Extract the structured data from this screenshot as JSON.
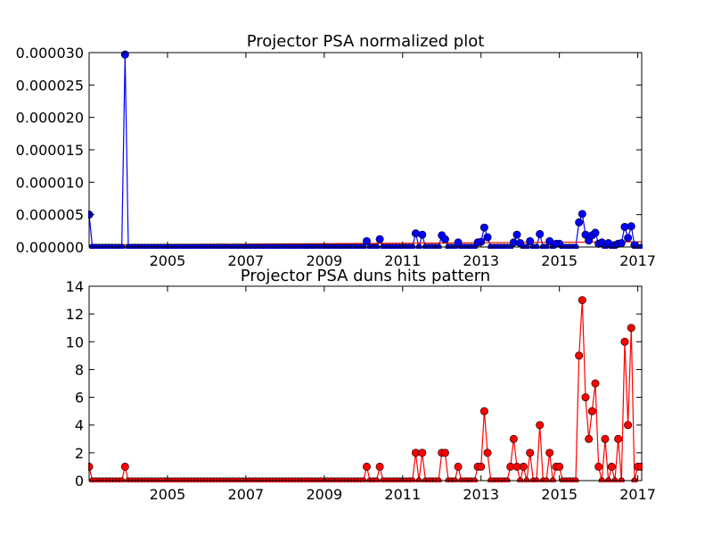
{
  "chart_data": [
    {
      "type": "line",
      "title": "Projector PSA normalized plot",
      "xlabel": "",
      "ylabel": "",
      "xlim": [
        2003.0,
        2017.1
      ],
      "ylim": [
        0,
        3e-05
      ],
      "xticks": [
        2005,
        2007,
        2009,
        2011,
        2013,
        2015,
        2017
      ],
      "yticks": [
        "0.000000",
        "0.000005",
        "0.000010",
        "0.000015",
        "0.000020",
        "0.000025",
        "0.000030"
      ],
      "ytick_values": [
        0,
        5e-06,
        1e-05,
        1.5e-05,
        2e-05,
        2.5e-05,
        3e-05
      ],
      "grid": false,
      "series": [
        {
          "color": "#0000ff",
          "marker": "circle",
          "x": [
            2003.0,
            2003.9,
            2010.08,
            2010.42,
            2011.33,
            2011.5,
            2012.0,
            2012.08,
            2012.42,
            2012.92,
            2013.0,
            2013.08,
            2013.17,
            2013.83,
            2013.92,
            2014.0,
            2014.25,
            2014.5,
            2014.75,
            2014.92,
            2015.0,
            2015.5,
            2015.58,
            2015.67,
            2015.75,
            2015.83,
            2015.92,
            2016.0,
            2016.08,
            2016.25,
            2016.42,
            2016.5,
            2016.58,
            2016.67,
            2016.75,
            2016.83,
            2016.92
          ],
          "y": [
            5e-06,
            2.97e-05,
            9e-07,
            1.2e-06,
            2.1e-06,
            1.9e-06,
            1.8e-06,
            1.2e-06,
            7e-07,
            7e-07,
            8e-07,
            3e-06,
            1.5e-06,
            7e-07,
            1.9e-06,
            6e-07,
            9e-07,
            2e-06,
            9e-07,
            5e-07,
            5e-07,
            3.8e-06,
            5.1e-06,
            1.9e-06,
            1e-06,
            1.8e-06,
            2.2e-06,
            5e-07,
            7e-07,
            6e-07,
            3e-07,
            5e-07,
            6e-07,
            3.1e-06,
            1.4e-06,
            3.2e-06,
            3e-07
          ],
          "trend": {
            "color": "#ff0000",
            "y_start": 3e-07,
            "y_end": 8e-07
          }
        }
      ]
    },
    {
      "type": "line",
      "title": "Projector PSA duns hits pattern",
      "xlabel": "",
      "ylabel": "",
      "xlim": [
        2003.0,
        2017.1
      ],
      "ylim": [
        0,
        14
      ],
      "xticks": [
        2005,
        2007,
        2009,
        2011,
        2013,
        2015,
        2017
      ],
      "yticks": [
        "0",
        "2",
        "4",
        "6",
        "8",
        "10",
        "12",
        "14"
      ],
      "ytick_values": [
        0,
        2,
        4,
        6,
        8,
        10,
        12,
        14
      ],
      "grid": false,
      "series": [
        {
          "color": "#ff0000",
          "marker": "circle",
          "x": [
            2003.0,
            2003.92,
            2010.08,
            2010.42,
            2011.33,
            2011.5,
            2012.0,
            2012.08,
            2012.42,
            2012.92,
            2013.0,
            2013.08,
            2013.17,
            2013.75,
            2013.83,
            2013.92,
            2014.08,
            2014.25,
            2014.5,
            2014.75,
            2014.92,
            2015.0,
            2015.5,
            2015.58,
            2015.67,
            2015.75,
            2015.83,
            2015.92,
            2016.0,
            2016.17,
            2016.33,
            2016.5,
            2016.67,
            2016.75,
            2016.83,
            2016.92,
            2017.0,
            2017.08
          ],
          "y": [
            1,
            1,
            1,
            1,
            2,
            2,
            2,
            2,
            1,
            1,
            1,
            5,
            2,
            1,
            3,
            1,
            1,
            2,
            4,
            2,
            1,
            1,
            9,
            13,
            6,
            3,
            5,
            7,
            1,
            3,
            1,
            3,
            10,
            4,
            11,
            0,
            1,
            1
          ]
        }
      ]
    }
  ]
}
